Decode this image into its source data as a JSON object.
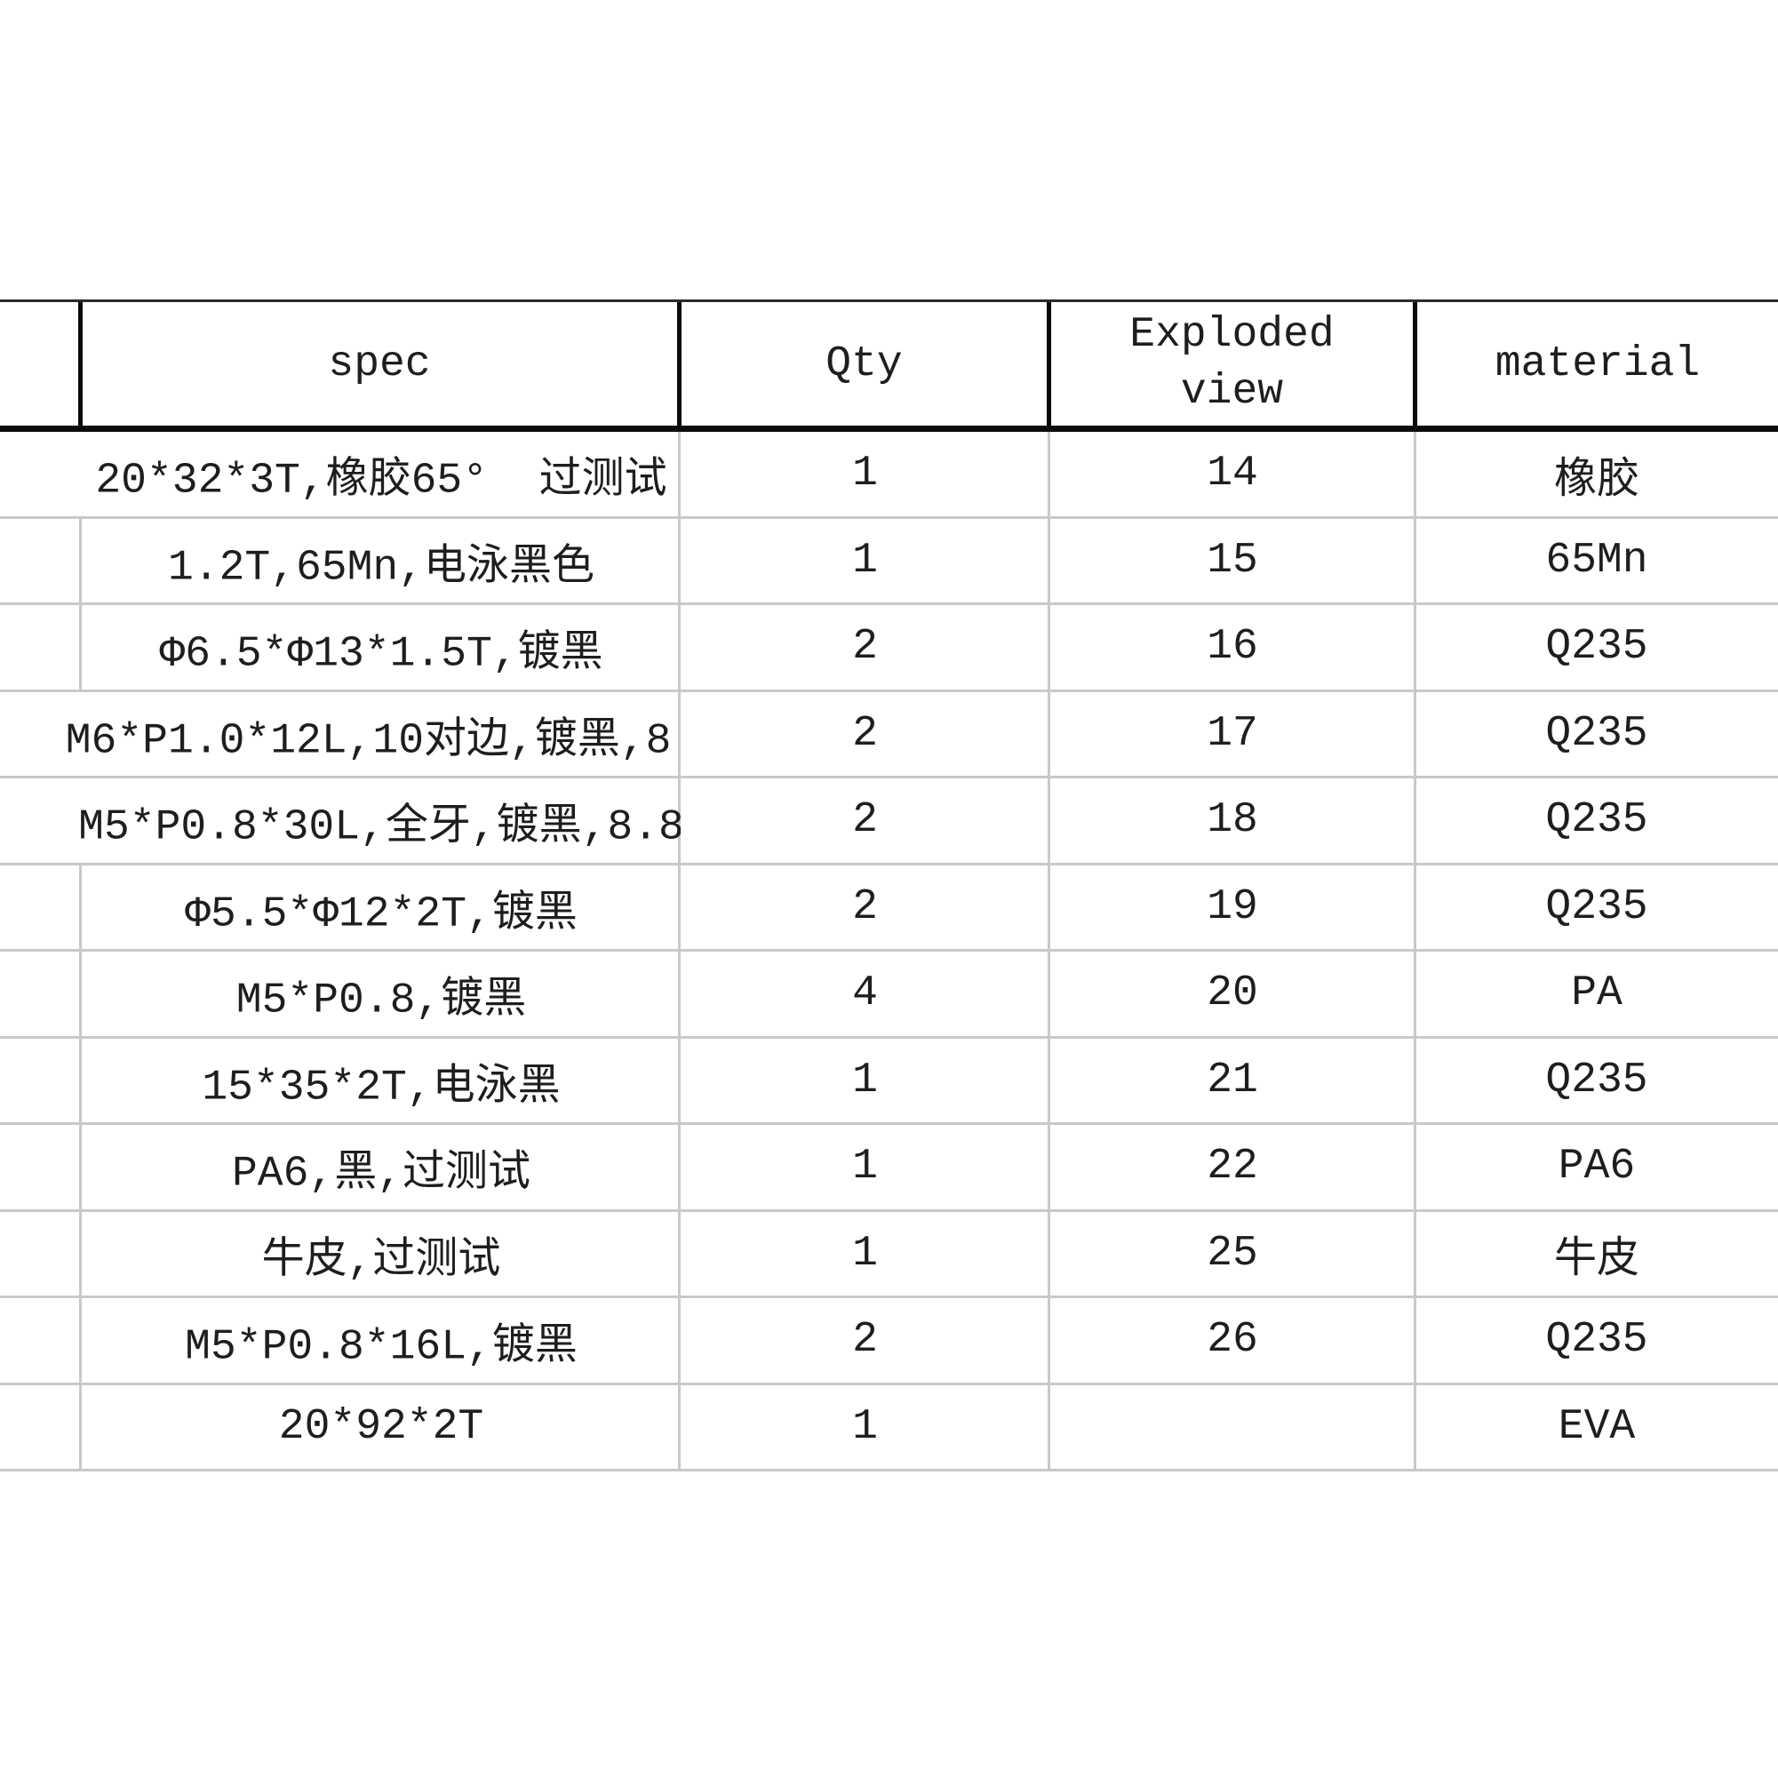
{
  "table": {
    "header": {
      "spec": "spec",
      "qty": "Qty",
      "exploded_view": "Exploded view",
      "material": "material"
    },
    "rows": [
      {
        "spec": "20*32*3T,橡胶65°  过测试",
        "qty": "1",
        "exploded_view": "14",
        "material": "橡胶"
      },
      {
        "spec": "1.2T,65Mn,电泳黑色",
        "qty": "1",
        "exploded_view": "15",
        "material": "65Mn"
      },
      {
        "spec": "Φ6.5*Φ13*1.5T,镀黑",
        "qty": "2",
        "exploded_view": "16",
        "material": "Q235"
      },
      {
        "spec": "M6*P1.0*12L,10对边,镀黑,8.",
        "qty": "2",
        "exploded_view": "17",
        "material": "Q235"
      },
      {
        "spec": "M5*P0.8*30L,全牙,镀黑,8.8",
        "qty": "2",
        "exploded_view": "18",
        "material": "Q235"
      },
      {
        "spec": "Φ5.5*Φ12*2T,镀黑",
        "qty": "2",
        "exploded_view": "19",
        "material": "Q235"
      },
      {
        "spec": "M5*P0.8,镀黑",
        "qty": "4",
        "exploded_view": "20",
        "material": "PA"
      },
      {
        "spec": "15*35*2T,电泳黑",
        "qty": "1",
        "exploded_view": "21",
        "material": "Q235"
      },
      {
        "spec": "PA6,黑,过测试",
        "qty": "1",
        "exploded_view": "22",
        "material": "PA6"
      },
      {
        "spec": "牛皮,过测试",
        "qty": "1",
        "exploded_view": "25",
        "material": "牛皮"
      },
      {
        "spec": "M5*P0.8*16L,镀黑",
        "qty": "2",
        "exploded_view": "26",
        "material": "Q235"
      },
      {
        "spec": "20*92*2T",
        "qty": "1",
        "exploded_view": "",
        "material": "EVA"
      }
    ],
    "colors": {
      "grid_light": "#c9c9c9",
      "grid_dark": "#0b0b0b",
      "text": "#1e1e1e",
      "background": "#ffffff"
    }
  }
}
